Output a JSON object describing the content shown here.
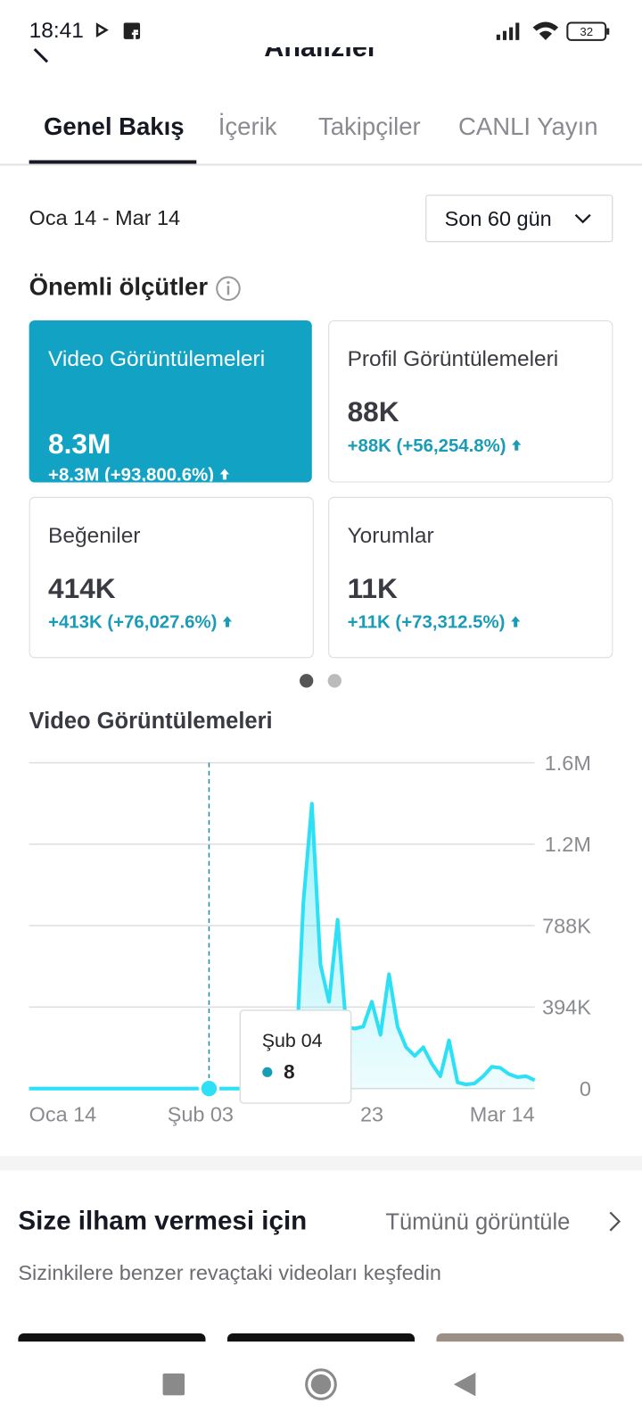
{
  "status_bar": {
    "time": "18:41",
    "battery": "32"
  },
  "header": {
    "title": "Analizler"
  },
  "tabs": [
    "Genel Bakış",
    "İçerik",
    "Takipçiler",
    "CANLI Yayın"
  ],
  "date_range": "Oca 14 - Mar 14",
  "period_selector": "Son 60 gün",
  "metrics_title": "Önemli ölçütler",
  "metrics": [
    {
      "label": "Video Görüntülemeleri",
      "value": "8.3M",
      "change": "+8.3M (+93,800.6%)"
    },
    {
      "label": "Profil Görüntülemeleri",
      "value": "88K",
      "change": "+88K (+56,254.8%)"
    },
    {
      "label": "Beğeniler",
      "value": "414K",
      "change": "+413K (+76,027.6%)"
    },
    {
      "label": "Yorumlar",
      "value": "11K",
      "change": "+11K (+73,312.5%)"
    }
  ],
  "chart_data": {
    "type": "area",
    "title": "Video Görüntülemeleri",
    "color": "#2ee0f5",
    "categories": [
      "Oca 14",
      null,
      null,
      null,
      null,
      null,
      null,
      null,
      null,
      null,
      null,
      null,
      null,
      null,
      null,
      null,
      null,
      null,
      null,
      null,
      "Şub 03",
      null,
      null,
      null,
      null,
      null,
      null,
      null,
      null,
      null,
      null,
      null,
      null,
      null,
      null,
      null,
      null,
      null,
      null,
      null,
      "23",
      null,
      null,
      null,
      null,
      null,
      null,
      null,
      null,
      null,
      null,
      null,
      null,
      null,
      null,
      null,
      null,
      null,
      null,
      "Mar 14"
    ],
    "values": [
      0,
      0,
      0,
      0,
      0,
      0,
      0,
      0,
      0,
      0,
      0,
      0,
      0,
      0,
      0,
      0,
      0,
      0,
      0,
      0,
      0,
      8,
      0,
      0,
      0,
      0,
      0,
      0,
      0,
      0,
      0,
      5000,
      900000,
      1378000,
      600000,
      420000,
      816000,
      300000,
      290000,
      300000,
      420000,
      260000,
      553000,
      300000,
      200000,
      158000,
      200000,
      120000,
      60000,
      233000,
      30000,
      20000,
      25000,
      60000,
      105000,
      100000,
      70000,
      55000,
      60000,
      40000
    ],
    "ylim": [
      0,
      1576000
    ],
    "yticks": [
      0,
      {
        "value": 394000,
        "label": "394K"
      },
      {
        "value": 788000,
        "label": "788K"
      },
      {
        "value": 1182000,
        "label": "1.2M"
      },
      {
        "value": 1576000,
        "label": "1.6M"
      }
    ],
    "grid": true,
    "tooltip": {
      "index": 21,
      "label": "Şub 04"
    }
  },
  "inspiration": {
    "title": "Size ilham vermesi için",
    "link": "Tümünü görüntüle",
    "subtitle": "Sizinkilere benzer revaçtaki videoları keşfedin"
  }
}
